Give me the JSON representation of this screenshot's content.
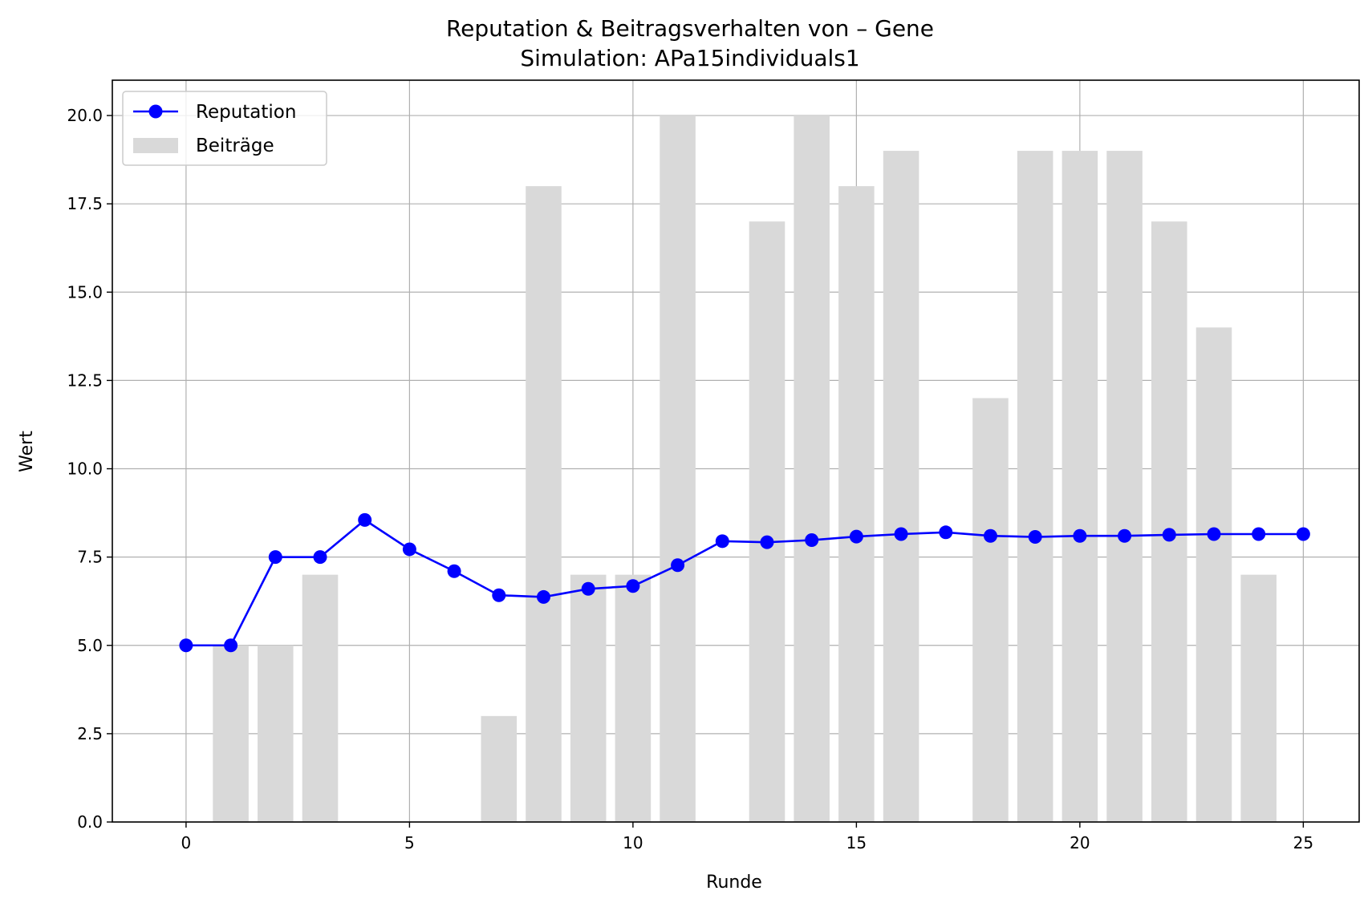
{
  "chart_data": {
    "type": "bar+line",
    "title": "Reputation & Beitragsverhalten von – Gene",
    "subtitle": "Simulation: APa15individuals1",
    "xlabel": "Runde",
    "ylabel": "Wert",
    "xlim": [
      -1.65,
      26.25
    ],
    "ylim": [
      0,
      21
    ],
    "x_ticks": [
      0,
      5,
      10,
      15,
      20,
      25
    ],
    "y_ticks": [
      0.0,
      2.5,
      5.0,
      7.5,
      10.0,
      12.5,
      15.0,
      17.5,
      20.0
    ],
    "grid": true,
    "legend_position": "top-left",
    "series": [
      {
        "name": "Reputation",
        "kind": "line",
        "color": "#0000ff",
        "marker": "circle",
        "x": [
          0,
          1,
          2,
          3,
          4,
          5,
          6,
          7,
          8,
          9,
          10,
          11,
          12,
          13,
          14,
          15,
          16,
          17,
          18,
          19,
          20,
          21,
          22,
          23,
          24,
          25
        ],
        "values": [
          5.0,
          5.0,
          7.5,
          7.5,
          8.55,
          7.72,
          7.1,
          6.42,
          6.37,
          6.6,
          6.68,
          7.27,
          7.95,
          7.92,
          7.98,
          8.08,
          8.15,
          8.2,
          8.1,
          8.07,
          8.1,
          8.1,
          8.13,
          8.15,
          8.15,
          8.15
        ]
      },
      {
        "name": "Beiträge",
        "kind": "bar",
        "color": "#d9d9d9",
        "x": [
          1,
          2,
          3,
          4,
          5,
          6,
          7,
          8,
          9,
          10,
          11,
          12,
          13,
          14,
          15,
          16,
          17,
          18,
          19,
          20,
          21,
          22,
          23,
          24
        ],
        "values": [
          5,
          5,
          7,
          0,
          0,
          0,
          3,
          18,
          7,
          7,
          20,
          0,
          17,
          20,
          18,
          19,
          0,
          12,
          19,
          19,
          19,
          17,
          14,
          7
        ]
      }
    ]
  }
}
